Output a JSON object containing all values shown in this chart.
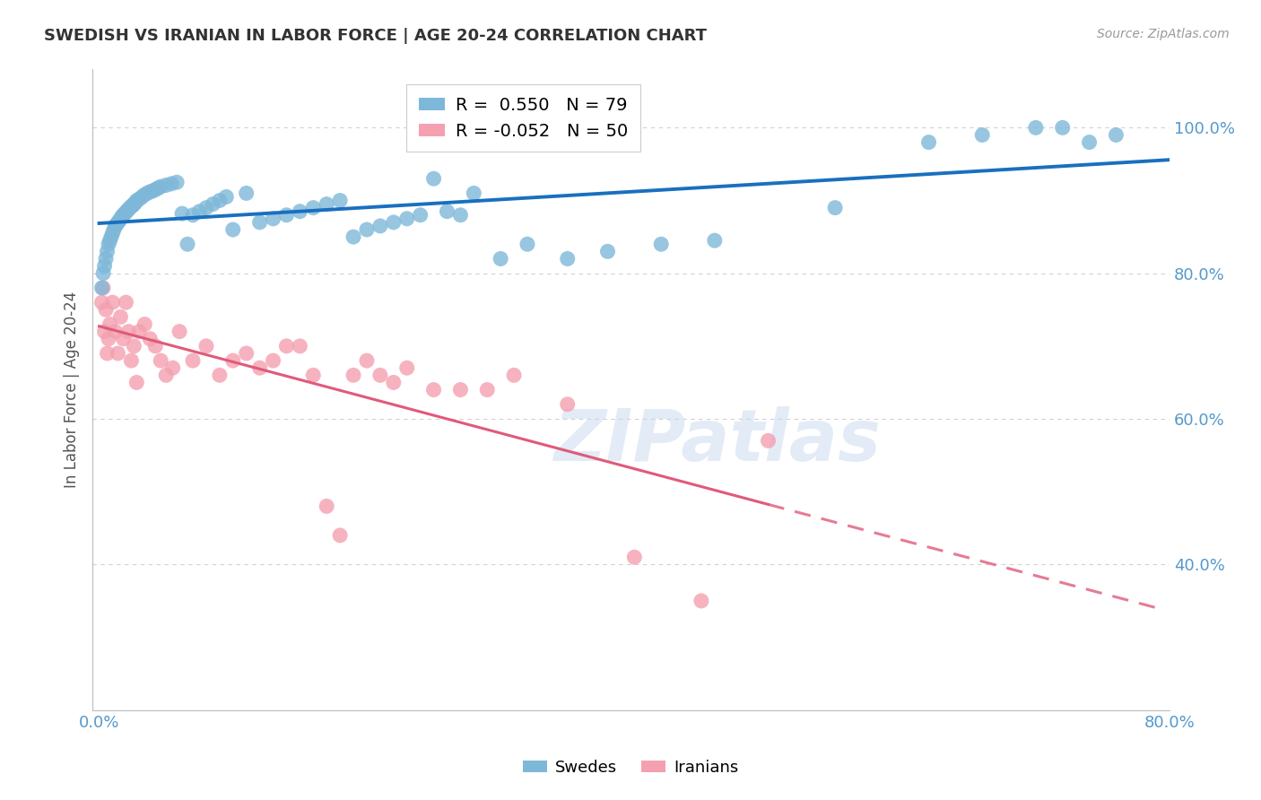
{
  "title": "SWEDISH VS IRANIAN IN LABOR FORCE | AGE 20-24 CORRELATION CHART",
  "source": "Source: ZipAtlas.com",
  "ylabel": "In Labor Force | Age 20-24",
  "xlim": [
    -0.005,
    0.8
  ],
  "ylim": [
    0.2,
    1.08
  ],
  "xticks": [
    0.0,
    0.1,
    0.2,
    0.3,
    0.4,
    0.5,
    0.6,
    0.7,
    0.8
  ],
  "xticklabels": [
    "0.0%",
    "",
    "",
    "",
    "",
    "",
    "",
    "",
    "80.0%"
  ],
  "yticks": [
    0.4,
    0.6,
    0.8,
    1.0
  ],
  "yticklabels": [
    "40.0%",
    "60.0%",
    "80.0%",
    "100.0%"
  ],
  "legend_blue_label": "R =  0.550   N = 79",
  "legend_pink_label": "R = -0.052   N = 50",
  "swede_color": "#7EB8D9",
  "iranian_color": "#F4A0B0",
  "line_blue_color": "#1A6FBF",
  "line_pink_color": "#E05A7A",
  "watermark": "ZIPatlas",
  "grid_color": "#CCCCCC",
  "title_color": "#333333",
  "axis_color": "#5599CC",
  "swedes_x": [
    0.002,
    0.003,
    0.004,
    0.005,
    0.006,
    0.007,
    0.008,
    0.009,
    0.01,
    0.011,
    0.012,
    0.013,
    0.014,
    0.015,
    0.016,
    0.017,
    0.018,
    0.019,
    0.02,
    0.021,
    0.022,
    0.023,
    0.024,
    0.025,
    0.026,
    0.027,
    0.028,
    0.03,
    0.032,
    0.034,
    0.036,
    0.038,
    0.04,
    0.042,
    0.044,
    0.046,
    0.05,
    0.054,
    0.058,
    0.062,
    0.066,
    0.07,
    0.075,
    0.08,
    0.085,
    0.09,
    0.095,
    0.1,
    0.11,
    0.12,
    0.13,
    0.14,
    0.15,
    0.16,
    0.17,
    0.18,
    0.19,
    0.2,
    0.21,
    0.22,
    0.23,
    0.24,
    0.25,
    0.26,
    0.27,
    0.28,
    0.3,
    0.32,
    0.35,
    0.38,
    0.42,
    0.46,
    0.55,
    0.62,
    0.66,
    0.7,
    0.72,
    0.74,
    0.76
  ],
  "swedes_y": [
    0.78,
    0.8,
    0.81,
    0.82,
    0.83,
    0.84,
    0.845,
    0.85,
    0.855,
    0.86,
    0.865,
    0.867,
    0.87,
    0.872,
    0.875,
    0.878,
    0.88,
    0.882,
    0.884,
    0.886,
    0.888,
    0.89,
    0.892,
    0.893,
    0.895,
    0.897,
    0.9,
    0.902,
    0.905,
    0.908,
    0.91,
    0.912,
    0.913,
    0.915,
    0.917,
    0.919,
    0.921,
    0.923,
    0.925,
    0.882,
    0.84,
    0.88,
    0.885,
    0.89,
    0.895,
    0.9,
    0.905,
    0.86,
    0.91,
    0.87,
    0.875,
    0.88,
    0.885,
    0.89,
    0.895,
    0.9,
    0.85,
    0.86,
    0.865,
    0.87,
    0.875,
    0.88,
    0.93,
    0.885,
    0.88,
    0.91,
    0.82,
    0.84,
    0.82,
    0.83,
    0.84,
    0.845,
    0.89,
    0.98,
    0.99,
    1.0,
    1.0,
    0.98,
    0.99
  ],
  "iranians_x": [
    0.002,
    0.003,
    0.004,
    0.005,
    0.006,
    0.007,
    0.008,
    0.01,
    0.012,
    0.014,
    0.016,
    0.018,
    0.02,
    0.022,
    0.024,
    0.026,
    0.028,
    0.03,
    0.034,
    0.038,
    0.042,
    0.046,
    0.05,
    0.055,
    0.06,
    0.07,
    0.08,
    0.09,
    0.1,
    0.11,
    0.12,
    0.13,
    0.14,
    0.15,
    0.16,
    0.17,
    0.18,
    0.19,
    0.2,
    0.21,
    0.22,
    0.23,
    0.25,
    0.27,
    0.29,
    0.31,
    0.35,
    0.4,
    0.45,
    0.5
  ],
  "iranians_y": [
    0.76,
    0.78,
    0.72,
    0.75,
    0.69,
    0.71,
    0.73,
    0.76,
    0.72,
    0.69,
    0.74,
    0.71,
    0.76,
    0.72,
    0.68,
    0.7,
    0.65,
    0.72,
    0.73,
    0.71,
    0.7,
    0.68,
    0.66,
    0.67,
    0.72,
    0.68,
    0.7,
    0.66,
    0.68,
    0.69,
    0.67,
    0.68,
    0.7,
    0.7,
    0.66,
    0.48,
    0.44,
    0.66,
    0.68,
    0.66,
    0.65,
    0.67,
    0.64,
    0.64,
    0.64,
    0.66,
    0.62,
    0.41,
    0.35,
    0.57
  ]
}
